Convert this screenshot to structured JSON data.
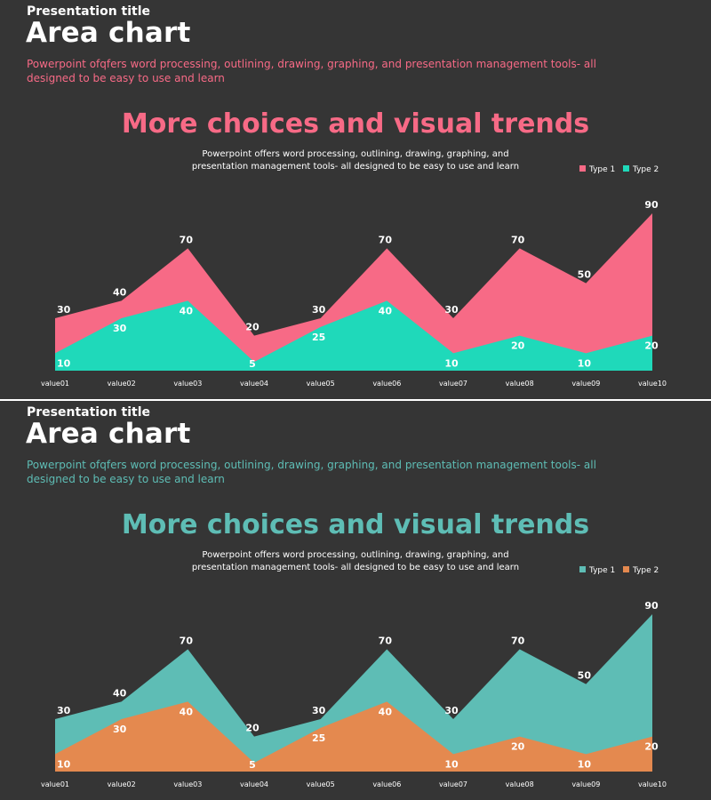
{
  "slides": [
    {
      "kicker": "Presentation title",
      "title": "Area chart",
      "description": "Powerpoint ofqfers word processing, outlining, drawing, graphing, and presentation management tools- all designed to be easy to use and learn",
      "headline": "More choices and visual trends",
      "subtext": "Powerpoint offers word processing, outlining, drawing, graphing, and presentation management tools- all designed to be easy to use and learn",
      "colors": {
        "accent": "#F76A86",
        "type1": "#F76A86",
        "type2": "#1FD9BA"
      }
    },
    {
      "kicker": "Presentation title",
      "title": "Area chart",
      "description": "Powerpoint ofqfers word processing, outlining, drawing, graphing, and presentation management tools- all designed to be easy to use and learn",
      "headline": "More choices and visual trends",
      "subtext": "Powerpoint offers word processing, outlining, drawing, graphing, and presentation management tools- all designed to be easy to use and learn",
      "colors": {
        "accent": "#5EBDB5",
        "type1": "#5EBDB5",
        "type2": "#E4894F"
      }
    }
  ],
  "chart_data": [
    {
      "type": "area",
      "categories": [
        "value01",
        "value02",
        "value03",
        "value04",
        "value05",
        "value06",
        "value07",
        "value08",
        "value09",
        "value10"
      ],
      "series": [
        {
          "name": "Type 1",
          "values": [
            30,
            40,
            70,
            20,
            30,
            70,
            30,
            70,
            50,
            90
          ]
        },
        {
          "name": "Type 2",
          "values": [
            10,
            30,
            40,
            5,
            25,
            40,
            10,
            20,
            10,
            20
          ]
        }
      ],
      "ylim": [
        0,
        90
      ],
      "legend": "top-right",
      "grid": false
    },
    {
      "type": "area",
      "categories": [
        "value01",
        "value02",
        "value03",
        "value04",
        "value05",
        "value06",
        "value07",
        "value08",
        "value09",
        "value10"
      ],
      "series": [
        {
          "name": "Type 1",
          "values": [
            30,
            40,
            70,
            20,
            30,
            70,
            30,
            70,
            50,
            90
          ]
        },
        {
          "name": "Type 2",
          "values": [
            10,
            30,
            40,
            5,
            25,
            40,
            10,
            20,
            10,
            20
          ]
        }
      ],
      "ylim": [
        0,
        90
      ],
      "legend": "top-right",
      "grid": false
    }
  ]
}
